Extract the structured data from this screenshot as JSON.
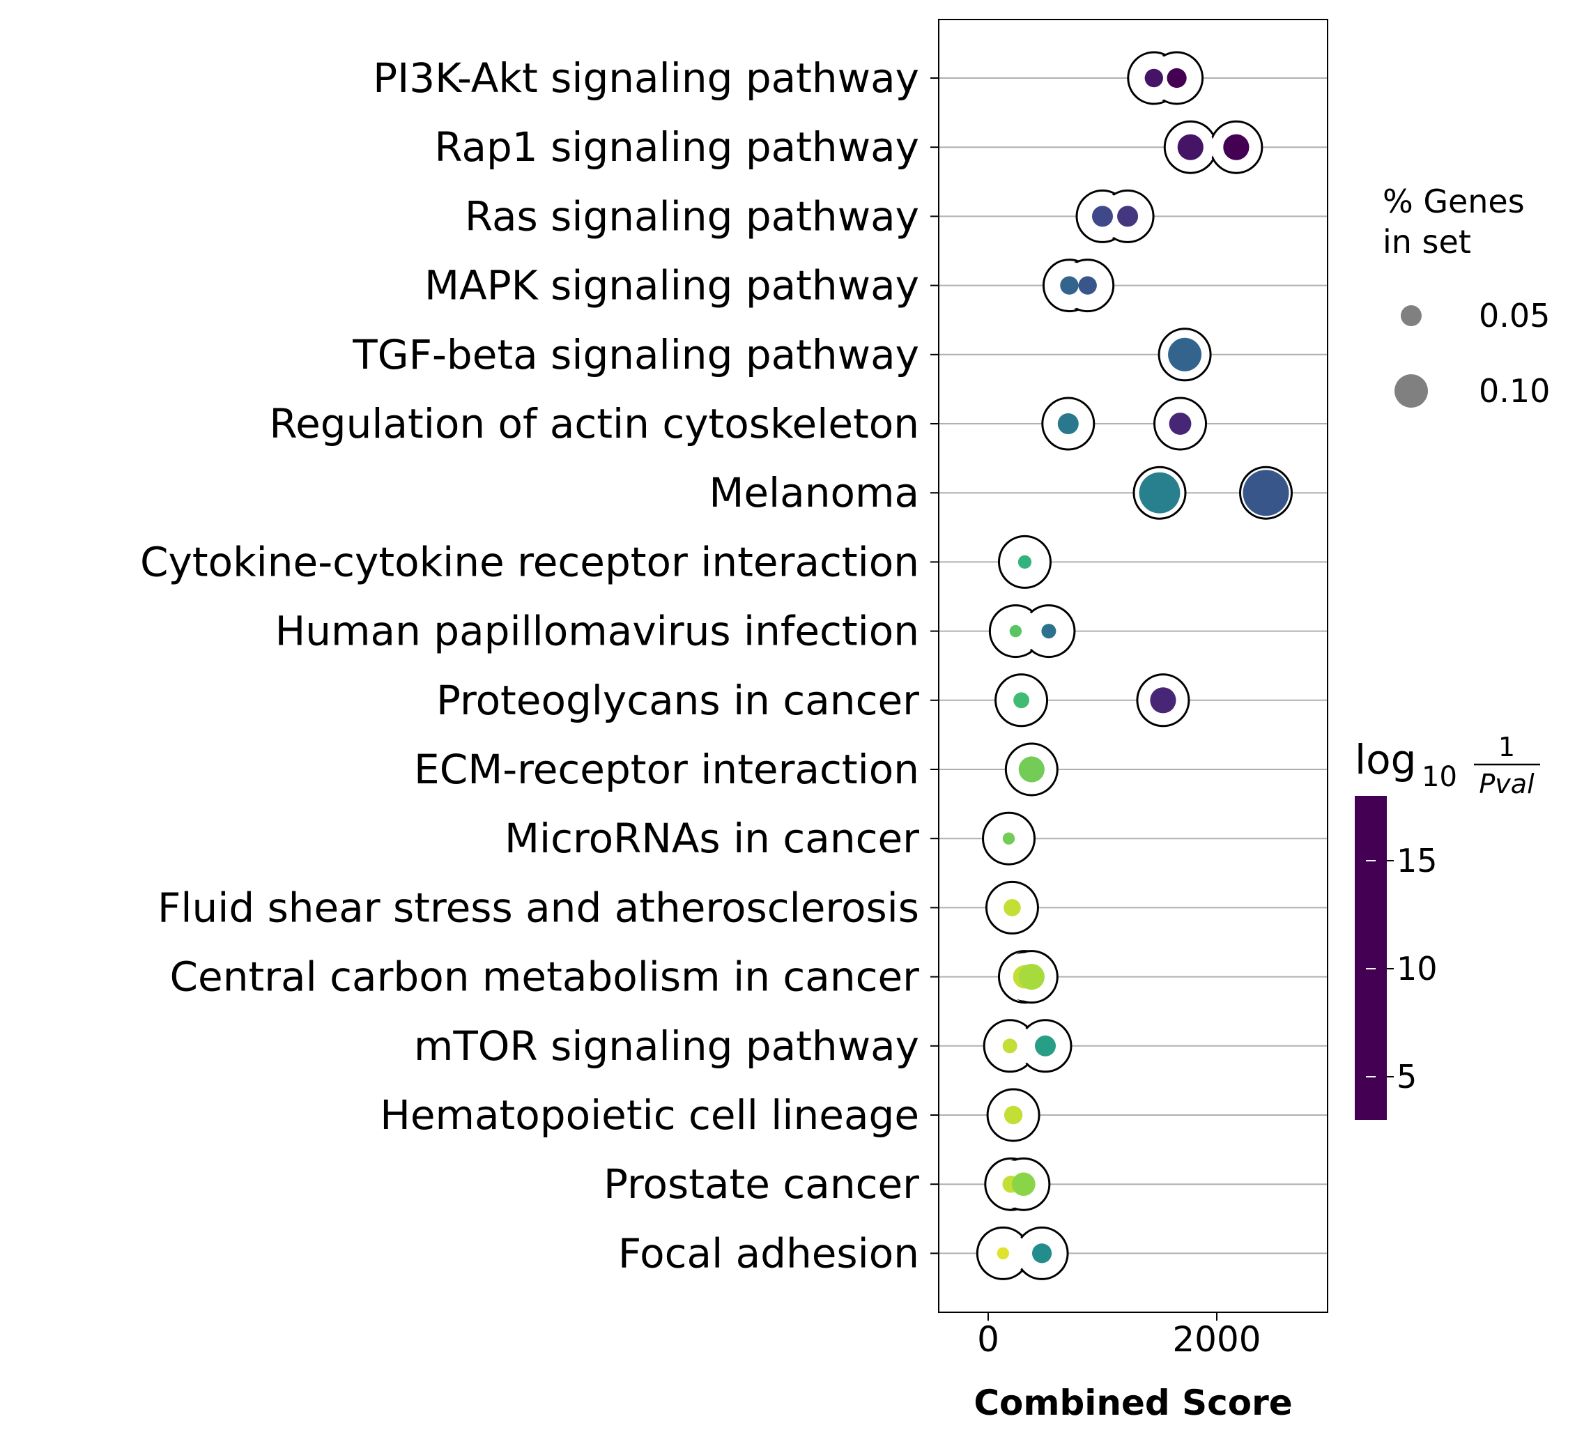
{
  "chart_data": {
    "type": "scatter",
    "xlabel": "Combined Score",
    "ylabel": "",
    "xlim": [
      -450,
      3000
    ],
    "x_ticks": [
      0,
      2000
    ],
    "categories": [
      "PI3K-Akt signaling pathway",
      "Rap1 signaling pathway",
      "Ras signaling pathway",
      "MAPK signaling pathway",
      "TGF-beta signaling pathway",
      "Regulation of actin cytoskeleton",
      "Melanoma",
      "Cytokine-cytokine receptor interaction",
      "Human papillomavirus infection",
      "Proteoglycans in cancer",
      "ECM-receptor interaction",
      "MicroRNAs in cancer",
      "Fluid shear stress and atherosclerosis",
      "Central carbon metabolism in cancer",
      "mTOR signaling pathway",
      "Hematopoietic cell lineage",
      "Prostate cancer",
      "Focal adhesion"
    ],
    "points": [
      {
        "term": "PI3K-Akt signaling pathway",
        "combined_score": 1450,
        "log10_inv_pval": 17,
        "pct_genes": 0.04
      },
      {
        "term": "PI3K-Akt signaling pathway",
        "combined_score": 1650,
        "log10_inv_pval": 18,
        "pct_genes": 0.045
      },
      {
        "term": "Rap1 signaling pathway",
        "combined_score": 1770,
        "log10_inv_pval": 17,
        "pct_genes": 0.07
      },
      {
        "term": "Rap1 signaling pathway",
        "combined_score": 2170,
        "log10_inv_pval": 18,
        "pct_genes": 0.07
      },
      {
        "term": "Ras signaling pathway",
        "combined_score": 1000,
        "log10_inv_pval": 14,
        "pct_genes": 0.05
      },
      {
        "term": "Ras signaling pathway",
        "combined_score": 1220,
        "log10_inv_pval": 15,
        "pct_genes": 0.05
      },
      {
        "term": "MAPK signaling pathway",
        "combined_score": 710,
        "log10_inv_pval": 12,
        "pct_genes": 0.04
      },
      {
        "term": "MAPK signaling pathway",
        "combined_score": 870,
        "log10_inv_pval": 13,
        "pct_genes": 0.04
      },
      {
        "term": "TGF-beta signaling pathway",
        "combined_score": 1720,
        "log10_inv_pval": 12,
        "pct_genes": 0.1
      },
      {
        "term": "Regulation of actin cytoskeleton",
        "combined_score": 700,
        "log10_inv_pval": 10.5,
        "pct_genes": 0.05
      },
      {
        "term": "Regulation of actin cytoskeleton",
        "combined_score": 1680,
        "log10_inv_pval": 16,
        "pct_genes": 0.055
      },
      {
        "term": "Melanoma",
        "combined_score": 1500,
        "log10_inv_pval": 10,
        "pct_genes": 0.13
      },
      {
        "term": "Melanoma",
        "combined_score": 2430,
        "log10_inv_pval": 13,
        "pct_genes": 0.15
      },
      {
        "term": "Cytokine-cytokine receptor interaction",
        "combined_score": 320,
        "log10_inv_pval": 7,
        "pct_genes": 0.02
      },
      {
        "term": "Human papillomavirus infection",
        "combined_score": 240,
        "log10_inv_pval": 6,
        "pct_genes": 0.015
      },
      {
        "term": "Human papillomavirus infection",
        "combined_score": 530,
        "log10_inv_pval": 11,
        "pct_genes": 0.025
      },
      {
        "term": "Proteoglycans in cancer",
        "combined_score": 290,
        "log10_inv_pval": 6.5,
        "pct_genes": 0.03
      },
      {
        "term": "Proteoglycans in cancer",
        "combined_score": 1530,
        "log10_inv_pval": 16,
        "pct_genes": 0.07
      },
      {
        "term": "ECM-receptor interaction",
        "combined_score": 380,
        "log10_inv_pval": 5.5,
        "pct_genes": 0.07
      },
      {
        "term": "MicroRNAs in cancer",
        "combined_score": 180,
        "log10_inv_pval": 5.5,
        "pct_genes": 0.015
      },
      {
        "term": "Fluid shear stress and atherosclerosis",
        "combined_score": 210,
        "log10_inv_pval": 4,
        "pct_genes": 0.035
      },
      {
        "term": "Central carbon metabolism in cancer",
        "combined_score": 320,
        "log10_inv_pval": 4,
        "pct_genes": 0.06
      },
      {
        "term": "Central carbon metabolism in cancer",
        "combined_score": 380,
        "log10_inv_pval": 4.5,
        "pct_genes": 0.07
      },
      {
        "term": "mTOR signaling pathway",
        "combined_score": 190,
        "log10_inv_pval": 4,
        "pct_genes": 0.025
      },
      {
        "term": "mTOR signaling pathway",
        "combined_score": 500,
        "log10_inv_pval": 8,
        "pct_genes": 0.05
      },
      {
        "term": "Hematopoietic cell lineage",
        "combined_score": 220,
        "log10_inv_pval": 4,
        "pct_genes": 0.04
      },
      {
        "term": "Prostate cancer",
        "combined_score": 200,
        "log10_inv_pval": 4,
        "pct_genes": 0.035
      },
      {
        "term": "Prostate cancer",
        "combined_score": 310,
        "log10_inv_pval": 5,
        "pct_genes": 0.06
      },
      {
        "term": "Focal adhesion",
        "combined_score": 130,
        "log10_inv_pval": 3.5,
        "pct_genes": 0.015
      },
      {
        "term": "Focal adhesion",
        "combined_score": 470,
        "log10_inv_pval": 9,
        "pct_genes": 0.045
      }
    ],
    "size_legend": {
      "title": "% Genes\nin set",
      "entries": [
        {
          "label": "0.05",
          "value": 0.05
        },
        {
          "label": "0.10",
          "value": 0.1
        }
      ]
    },
    "colorbar": {
      "title": "log10 1/Pval",
      "range": [
        3,
        18
      ],
      "ticks": [
        5,
        10,
        15
      ],
      "colormap": "viridis_r"
    },
    "grid": "horizontal",
    "legend_position": "right"
  }
}
